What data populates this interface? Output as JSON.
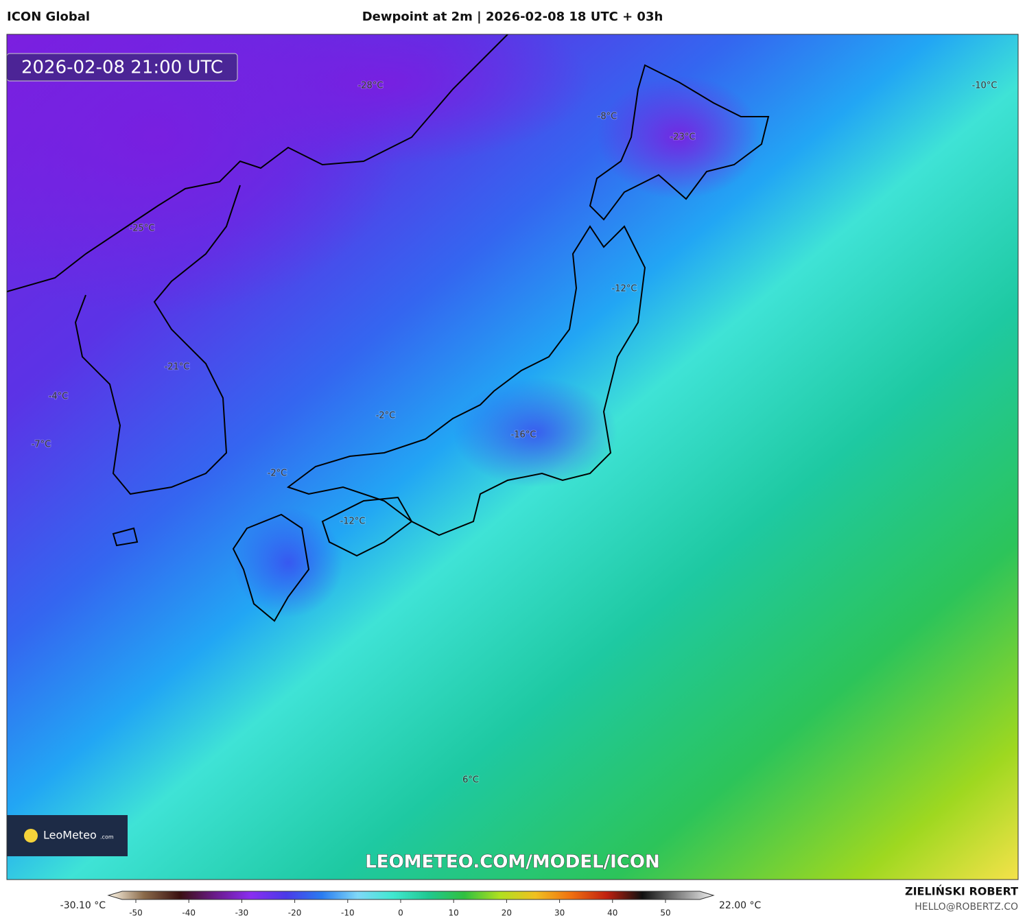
{
  "header": {
    "model": "ICON Global",
    "title": "Dewpoint at 2m | 2026-02-08 18 UTC + 03h"
  },
  "map": {
    "timestamp": "2026-02-08 21:00 UTC",
    "labels": [
      "-28°C",
      "-8°C",
      "-23°C",
      "-10°C",
      "-25°C",
      "-12°C",
      "-21°C",
      "-4°C",
      "-2°C",
      "-7°C",
      "-16°C",
      "-2°C",
      "-12°C",
      "6°C"
    ],
    "watermark": "LEOMETEO.COM/MODEL/ICON",
    "logo": {
      "name": "LeoMeteo",
      "suffix": ".com"
    }
  },
  "colorbar": {
    "min_label": "-30.10 °C",
    "max_label": "22.00 °C",
    "ticks": [
      -50,
      -40,
      -30,
      -20,
      -10,
      0,
      10,
      20,
      30,
      40,
      50
    ]
  },
  "footer": {
    "author": "ZIELIŃSKI ROBERT",
    "contact": "HELLO@ROBERTZ.CO"
  }
}
